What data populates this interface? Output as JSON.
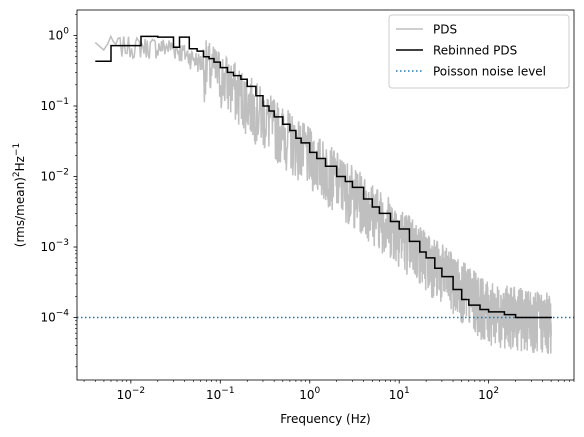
{
  "chart_data": {
    "type": "line",
    "x_scale": "log",
    "y_scale": "log",
    "xlim": [
      0.0025,
      900
    ],
    "ylim": [
      1.3e-05,
      2.3
    ],
    "xlabel": "Frequency (Hz)",
    "ylabel_main": "(rms/mean)",
    "ylabel_sup1": "2",
    "ylabel_mid": "Hz",
    "ylabel_sup2": "−1",
    "x_ticks": [
      {
        "value": 0.01,
        "base": "10",
        "exp": "−2"
      },
      {
        "value": 0.1,
        "base": "10",
        "exp": "−1"
      },
      {
        "value": 1,
        "base": "10",
        "exp": "0"
      },
      {
        "value": 10,
        "base": "10",
        "exp": "1"
      },
      {
        "value": 100,
        "base": "10",
        "exp": "2"
      }
    ],
    "y_ticks": [
      {
        "value": 0.0001,
        "base": "10",
        "exp": "−4"
      },
      {
        "value": 0.001,
        "base": "10",
        "exp": "−3"
      },
      {
        "value": 0.01,
        "base": "10",
        "exp": "−2"
      },
      {
        "value": 0.1,
        "base": "10",
        "exp": "−1"
      },
      {
        "value": 1,
        "base": "10",
        "exp": "0"
      }
    ],
    "legend_position": "top-right",
    "legend": [
      "PDS",
      "Rebinned PDS",
      "Poisson noise level"
    ],
    "colors": {
      "pds": "#bfbfbf",
      "rebinned": "#000000",
      "poisson": "#1f77b4"
    },
    "pds_model": {
      "description_points_x": [
        0.004,
        0.03,
        0.1,
        0.3,
        1,
        3,
        10,
        30,
        100,
        500
      ],
      "description_points_y": [
        0.75,
        0.7,
        0.3,
        0.08,
        0.022,
        0.0065,
        0.0018,
        0.0005,
        0.00014,
        0.0001
      ],
      "f_min": 0.004,
      "f_max": 500,
      "scatter_decades_low": 0.35,
      "scatter_decades_high": 0.55
    },
    "series": [
      {
        "name": "Rebinned PDS",
        "x": [
          0.004,
          0.006,
          0.009,
          0.013,
          0.02,
          0.03,
          0.035,
          0.045,
          0.055,
          0.065,
          0.075,
          0.085,
          0.1,
          0.12,
          0.14,
          0.17,
          0.2,
          0.25,
          0.3,
          0.35,
          0.4,
          0.5,
          0.6,
          0.7,
          0.8,
          1.0,
          1.2,
          1.5,
          2.0,
          2.5,
          3.0,
          4.0,
          5.0,
          6.0,
          8.0,
          10,
          13,
          17,
          20,
          25,
          30,
          40,
          50,
          60,
          80,
          100,
          150,
          200,
          300,
          500
        ],
        "y": [
          0.43,
          0.72,
          0.72,
          0.97,
          0.95,
          0.68,
          0.95,
          0.65,
          0.6,
          0.5,
          0.47,
          0.42,
          0.35,
          0.3,
          0.27,
          0.24,
          0.19,
          0.14,
          0.1,
          0.085,
          0.07,
          0.055,
          0.045,
          0.035,
          0.03,
          0.022,
          0.018,
          0.014,
          0.01,
          0.0085,
          0.007,
          0.0048,
          0.0037,
          0.003,
          0.0023,
          0.0018,
          0.0012,
          0.00085,
          0.0007,
          0.0005,
          0.00038,
          0.00025,
          0.00018,
          0.00015,
          0.00013,
          0.00012,
          0.00011,
          0.0001,
          0.0001,
          9.8e-05
        ]
      },
      {
        "name": "Poisson noise level",
        "y_constant": 0.0001
      }
    ]
  }
}
